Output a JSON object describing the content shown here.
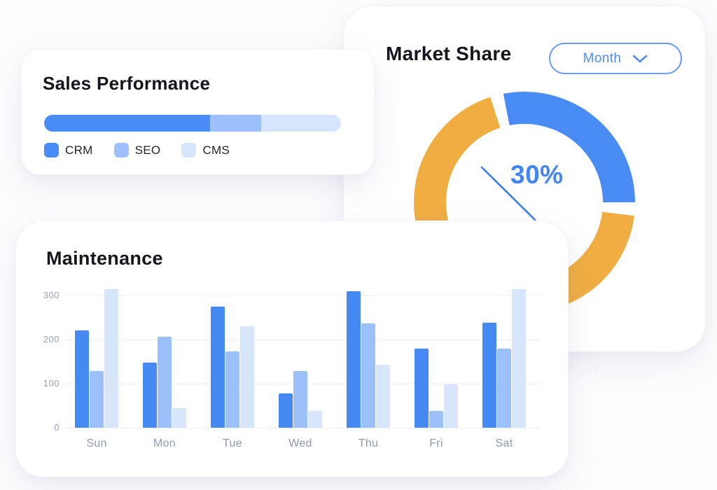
{
  "cards": {
    "market": {
      "title": "Market Share",
      "dropdown_label": "Month"
    },
    "sales": {
      "title": "Sales Performance"
    },
    "maintenance": {
      "title": "Maintenance"
    }
  },
  "colors": {
    "primary_blue": "#4a8cf5",
    "medium_blue": "#9dc0fa",
    "light_blue": "#d7e5fc",
    "orange": "#f0ad42",
    "donut_label_blue": "#4285f4",
    "dropdown_blue": "#4d8cf4",
    "axis_text": "#9aa2b6",
    "gridline": "#edf0f6"
  },
  "chart_data": [
    {
      "id": "sales-performance",
      "type": "bar",
      "subtype": "horizontal-stacked-progress",
      "title": "Sales Performance",
      "segments": [
        {
          "label": "CRM",
          "value": 56,
          "color": "#4a8cf5"
        },
        {
          "label": "SEO",
          "value": 17,
          "color": "#9dc0fa"
        },
        {
          "label": "CMS",
          "value": 27,
          "color": "#d7e5fc"
        }
      ],
      "legend_position": "bottom"
    },
    {
      "id": "market-share",
      "type": "pie",
      "subtype": "donut",
      "title": "Market Share",
      "period": "Month",
      "slices": [
        {
          "label": "30%",
          "value": 30,
          "color": "#4a8cf5"
        },
        {
          "label": "",
          "value": 70,
          "color": "#f0ad42"
        }
      ],
      "rotation_deg": -11,
      "gap_deg": 7,
      "center_label": "30%",
      "center_label_color": "#4285f4",
      "callout_line_color": "#3b7df0"
    },
    {
      "id": "maintenance",
      "type": "bar",
      "subtype": "grouped-vertical",
      "title": "Maintenance",
      "categories": [
        "Sun",
        "Mon",
        "Tue",
        "Wed",
        "Thu",
        "Fri",
        "Sat"
      ],
      "series": [
        {
          "name": "series-1",
          "color": "#4689f3",
          "values": [
            220,
            148,
            275,
            78,
            310,
            180,
            238
          ]
        },
        {
          "name": "series-2",
          "color": "#9cc0f9",
          "values": [
            128,
            207,
            173,
            128,
            237,
            38,
            180
          ]
        },
        {
          "name": "series-3",
          "color": "#d8e6fc",
          "values": [
            315,
            45,
            230,
            38,
            143,
            98,
            314
          ]
        }
      ],
      "ylim": [
        0,
        300
      ],
      "yticks": [
        0,
        100,
        200,
        300
      ],
      "grid": true,
      "legend_position": "none"
    }
  ]
}
